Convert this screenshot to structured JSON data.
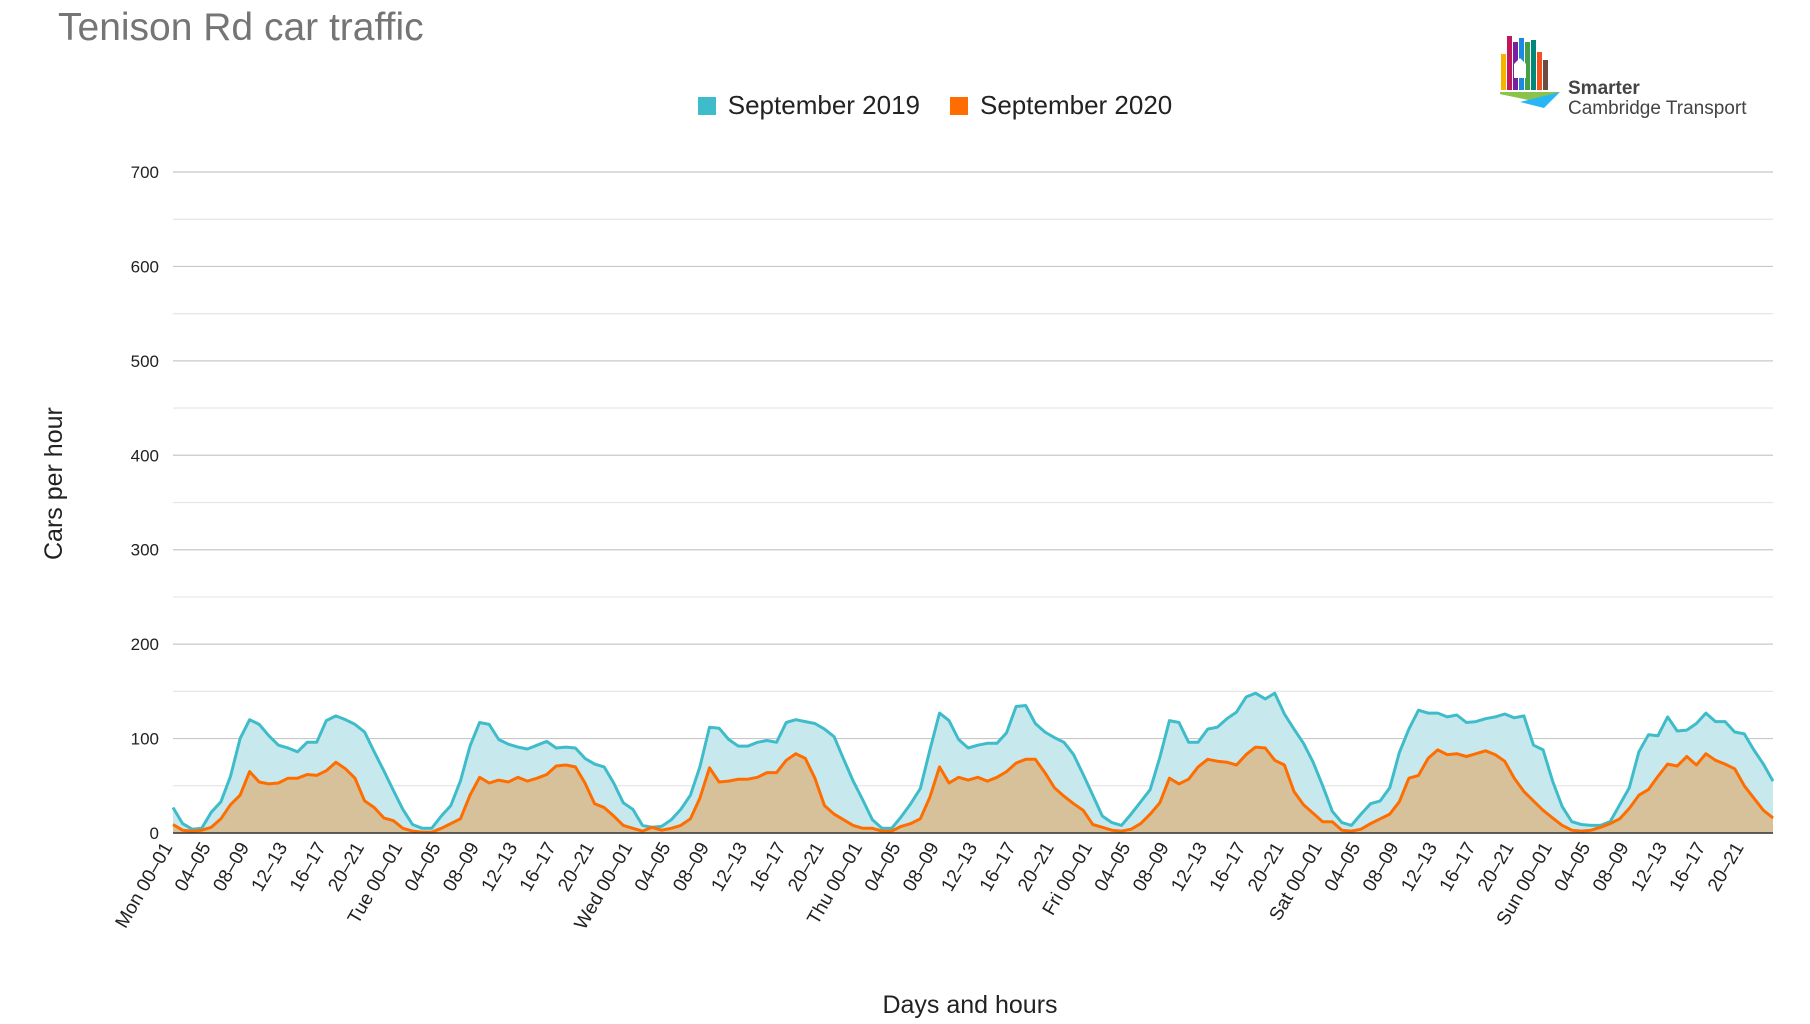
{
  "title": "Tenison Rd car traffic",
  "logo": {
    "line1": "Smarter",
    "line2": "Cambridge Transport"
  },
  "colors": {
    "s2019": "#3fbcc9",
    "s2019_fill": "#c7e9ee",
    "s2020": "#ff6d00",
    "s2020_fill": "#d6c19a",
    "grid": "#cccccc"
  },
  "chart_data": {
    "type": "area",
    "xlabel": "Days and hours",
    "ylabel": "Cars per hour",
    "ylim": [
      0,
      700
    ],
    "yticks": [
      0,
      100,
      200,
      300,
      400,
      500,
      600,
      700
    ],
    "grid": true,
    "legend_position": "top",
    "x_tick_labels": [
      "Mon 00–01",
      "04–05",
      "08–09",
      "12–13",
      "16–17",
      "20–21",
      "Tue 00–01",
      "04–05",
      "08–09",
      "12–13",
      "16–17",
      "20–21",
      "Wed 00–01",
      "04–05",
      "08–09",
      "12–13",
      "16–17",
      "20–21",
      "Thu 00–01",
      "04–05",
      "08–09",
      "12–13",
      "16–17",
      "20–21",
      "Fri 00–01",
      "04–05",
      "08–09",
      "12–13",
      "16–17",
      "20–21",
      "Sat 00–01",
      "04–05",
      "08–09",
      "12–13",
      "16–17",
      "20–21",
      "Sun 00–01",
      "04–05",
      "08–09",
      "12–13",
      "16–17",
      "20–21"
    ],
    "x_tick_step_hours": 4,
    "series": [
      {
        "name": "September 2019",
        "color": "#3fbcc9",
        "values": [
          27,
          10,
          4,
          5,
          22,
          33,
          60,
          100,
          120,
          115,
          103,
          93,
          90,
          86,
          96,
          96,
          119,
          124,
          120,
          115,
          107,
          86,
          66,
          45,
          25,
          9,
          5,
          5,
          18,
          29,
          55,
          92,
          117,
          115,
          99,
          94,
          91,
          89,
          93,
          97,
          90,
          91,
          90,
          79,
          73,
          70,
          53,
          32,
          25,
          8,
          6,
          7,
          14,
          25,
          40,
          70,
          112,
          111,
          99,
          92,
          92,
          96,
          98,
          96,
          117,
          120,
          118,
          116,
          110,
          102,
          78,
          55,
          35,
          14,
          5,
          5,
          17,
          31,
          47,
          88,
          127,
          119,
          99,
          90,
          93,
          95,
          95,
          106,
          134,
          135,
          116,
          107,
          101,
          96,
          83,
          62,
          40,
          18,
          11,
          8,
          20,
          33,
          46,
          80,
          119,
          117,
          96,
          96,
          110,
          112,
          121,
          128,
          144,
          148,
          142,
          148,
          126,
          110,
          95,
          75,
          50,
          23,
          11,
          8,
          20,
          31,
          34,
          48,
          85,
          110,
          130,
          127,
          127,
          123,
          125,
          117,
          118,
          121,
          123,
          126,
          122,
          124,
          93,
          88,
          55,
          28,
          12,
          9,
          8,
          8,
          12,
          30,
          48,
          86,
          104,
          103,
          123,
          108,
          109,
          116,
          127,
          118,
          118,
          107,
          105,
          88,
          73,
          55
        ]
      },
      {
        "name": "September 2020",
        "color": "#ff6d00",
        "values": [
          9,
          3,
          2,
          3,
          6,
          15,
          30,
          40,
          65,
          54,
          52,
          53,
          58,
          58,
          62,
          61,
          66,
          75,
          68,
          58,
          34,
          27,
          16,
          13,
          5,
          2,
          1,
          1,
          5,
          10,
          15,
          40,
          59,
          53,
          56,
          54,
          59,
          55,
          58,
          62,
          71,
          72,
          70,
          53,
          31,
          27,
          18,
          8,
          5,
          2,
          6,
          3,
          5,
          8,
          15,
          37,
          69,
          54,
          55,
          57,
          57,
          59,
          64,
          64,
          77,
          84,
          79,
          58,
          29,
          20,
          14,
          8,
          5,
          5,
          2,
          2,
          7,
          10,
          15,
          38,
          70,
          53,
          59,
          56,
          59,
          55,
          59,
          65,
          74,
          78,
          78,
          64,
          48,
          39,
          31,
          24,
          9,
          6,
          3,
          2,
          4,
          10,
          20,
          32,
          58,
          52,
          57,
          70,
          78,
          76,
          75,
          72,
          83,
          91,
          90,
          77,
          72,
          44,
          30,
          21,
          12,
          12,
          3,
          2,
          4,
          10,
          15,
          20,
          33,
          58,
          61,
          79,
          88,
          83,
          84,
          81,
          84,
          87,
          83,
          76,
          58,
          44,
          34,
          24,
          16,
          8,
          3,
          2,
          3,
          6,
          10,
          15,
          26,
          40,
          46,
          60,
          73,
          71,
          81,
          72,
          84,
          77,
          73,
          68,
          50,
          37,
          24,
          16
        ]
      }
    ]
  }
}
